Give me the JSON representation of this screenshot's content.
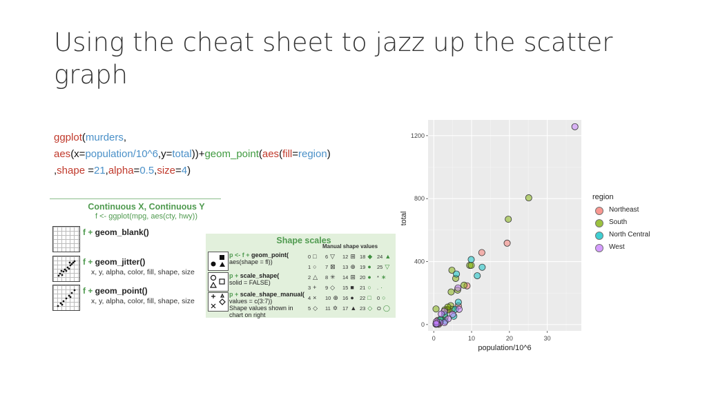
{
  "slide": {
    "title": "Using the cheat sheet to jazz up the scatter graph"
  },
  "code": {
    "tokens": [
      [
        {
          "t": "ggplot",
          "c": "red"
        },
        {
          "t": "(",
          "c": "black"
        },
        {
          "t": "murders",
          "c": "blue"
        },
        {
          "t": ",",
          "c": "black"
        }
      ],
      [
        {
          "t": "aes",
          "c": "red"
        },
        {
          "t": "(x=",
          "c": "black"
        },
        {
          "t": "population/10^6",
          "c": "blue"
        },
        {
          "t": ",y=",
          "c": "black"
        },
        {
          "t": "total",
          "c": "blue"
        },
        {
          "t": "))+",
          "c": "black"
        },
        {
          "t": "geom_point",
          "c": "green"
        },
        {
          "t": "(",
          "c": "black"
        },
        {
          "t": "aes",
          "c": "red"
        },
        {
          "t": "(",
          "c": "black"
        },
        {
          "t": "fill",
          "c": "red"
        },
        {
          "t": "=",
          "c": "black"
        },
        {
          "t": "region",
          "c": "blue"
        },
        {
          "t": ")",
          "c": "black"
        }
      ],
      [
        {
          "t": ",",
          "c": "black"
        },
        {
          "t": "shape",
          "c": "red"
        },
        {
          "t": " =",
          "c": "black"
        },
        {
          "t": "21",
          "c": "blue"
        },
        {
          "t": ",",
          "c": "black"
        },
        {
          "t": "alpha",
          "c": "red"
        },
        {
          "t": "=",
          "c": "black"
        },
        {
          "t": "0.5",
          "c": "blue"
        },
        {
          "t": ",",
          "c": "black"
        },
        {
          "t": "size",
          "c": "red"
        },
        {
          "t": "=",
          "c": "black"
        },
        {
          "t": "4",
          "c": "blue"
        },
        {
          "t": ")",
          "c": "black"
        }
      ]
    ]
  },
  "cheatsheet1": {
    "title": "Continuous X, Continuous Y",
    "subtitle": "f <- ggplot(mpg, aes(cty, hwy))",
    "rows": [
      {
        "fprefix": "f + ",
        "fn": "geom_blank()",
        "args": ""
      },
      {
        "fprefix": "f + ",
        "fn": "geom_jitter()",
        "args": "x, y, alpha, color, fill, shape, size"
      },
      {
        "fprefix": "f + ",
        "fn": "geom_point()",
        "args": "x, y, alpha, color, fill, shape, size"
      }
    ]
  },
  "cheatsheet2": {
    "title": "Shape scales",
    "table_header": "Manual shape values",
    "entries": [
      {
        "prefix": "p <- f + ",
        "fn": "geom_point(",
        "lines": [
          "aes(shape = fl))"
        ]
      },
      {
        "prefix": "p + ",
        "fn": "scale_shape(",
        "lines": [
          "solid = FALSE)"
        ]
      },
      {
        "prefix": "p + ",
        "fn": "scale_shape_manual(",
        "lines": [
          "values = c(3:7))",
          "Shape values shown in",
          "chart on right"
        ]
      }
    ],
    "shape_numbers": [
      [
        "0",
        "6",
        "12",
        "18",
        "24"
      ],
      [
        "1",
        "7",
        "13",
        "19",
        "25"
      ],
      [
        "2",
        "8",
        "14",
        "20",
        "*"
      ],
      [
        "3",
        "9",
        "15",
        "21",
        "."
      ],
      [
        "4",
        "10",
        "16",
        "22",
        "0"
      ],
      [
        "5",
        "11",
        "17",
        "23",
        "O"
      ]
    ]
  },
  "chart_data": {
    "type": "scatter",
    "xlabel": "population/10^6",
    "ylabel": "total",
    "xlim": [
      -1.5,
      39
    ],
    "ylim": [
      -40,
      1300
    ],
    "x_ticks": [
      0,
      10,
      20,
      30
    ],
    "y_ticks": [
      0,
      400,
      800,
      1200
    ],
    "grid": true,
    "legend": {
      "title": "region",
      "placement": "right"
    },
    "series": [
      {
        "name": "Northeast",
        "color": "#F8766D",
        "points": [
          [
            19.4,
            517
          ],
          [
            12.7,
            457
          ],
          [
            8.8,
            246
          ],
          [
            6.5,
            118
          ],
          [
            3.6,
            97
          ],
          [
            1.3,
            11
          ],
          [
            1.1,
            27
          ],
          [
            1.3,
            2
          ],
          [
            0.6,
            2
          ]
        ]
      },
      {
        "name": "South",
        "color": "#7CAE00",
        "points": [
          [
            25.1,
            805
          ],
          [
            19.7,
            669
          ],
          [
            9.5,
            376
          ],
          [
            9.9,
            376
          ],
          [
            8.0,
            250
          ],
          [
            6.3,
            219
          ],
          [
            5.8,
            293
          ],
          [
            4.8,
            345
          ],
          [
            4.6,
            207
          ],
          [
            4.5,
            120
          ],
          [
            4.8,
            97
          ],
          [
            3.8,
            93
          ],
          [
            3.0,
            46
          ],
          [
            3.7,
            111
          ],
          [
            2.9,
            93
          ],
          [
            1.9,
            27
          ],
          [
            0.9,
            13
          ],
          [
            0.6,
            99
          ]
        ]
      },
      {
        "name": "North Central",
        "color": "#00BFC4",
        "points": [
          [
            12.8,
            364
          ],
          [
            11.5,
            310
          ],
          [
            9.9,
            413
          ],
          [
            6.5,
            142
          ],
          [
            6.0,
            321
          ],
          [
            5.7,
            97
          ],
          [
            5.3,
            53
          ],
          [
            3.0,
            21
          ],
          [
            2.9,
            63
          ],
          [
            1.8,
            32
          ],
          [
            0.8,
            4
          ],
          [
            0.7,
            4
          ]
        ]
      },
      {
        "name": "West",
        "color": "#C77CFF",
        "points": [
          [
            37.3,
            1257
          ],
          [
            6.4,
            232
          ],
          [
            6.7,
            97
          ],
          [
            5.0,
            65
          ],
          [
            3.8,
            36
          ],
          [
            2.8,
            84
          ],
          [
            2.8,
            12
          ],
          [
            2.0,
            67
          ],
          [
            1.6,
            12
          ],
          [
            0.99,
            5
          ],
          [
            0.9,
            5
          ],
          [
            0.7,
            19
          ],
          [
            0.6,
            5
          ]
        ]
      }
    ]
  }
}
